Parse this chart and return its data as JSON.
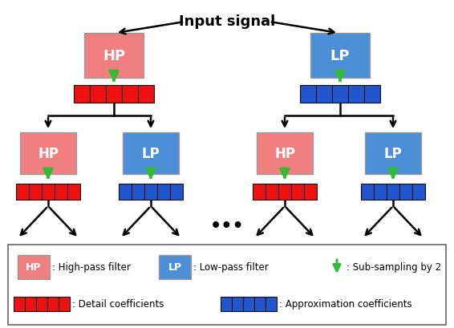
{
  "title": "Input signal",
  "title_fontsize": 13,
  "title_fontweight": "bold",
  "hp_color": "#F08080",
  "lp_color": "#4C8FD6",
  "red_coeff_color": "#EE1111",
  "blue_coeff_color": "#2255CC",
  "arrow_green": "#33BB33",
  "black": "#000000",
  "white": "#FFFFFF",
  "legend_border_color": "#666666",
  "dots": "•••",
  "hp_label": "HP",
  "lp_label": "LP",
  "legend": {
    "hp_text": ": High-pass filter",
    "lp_text": ": Low-pass filter",
    "sub_text": ": Sub-sampling by 2",
    "detail_text": ": Detail coefficients",
    "approx_text": ": Approximation coefficients"
  }
}
